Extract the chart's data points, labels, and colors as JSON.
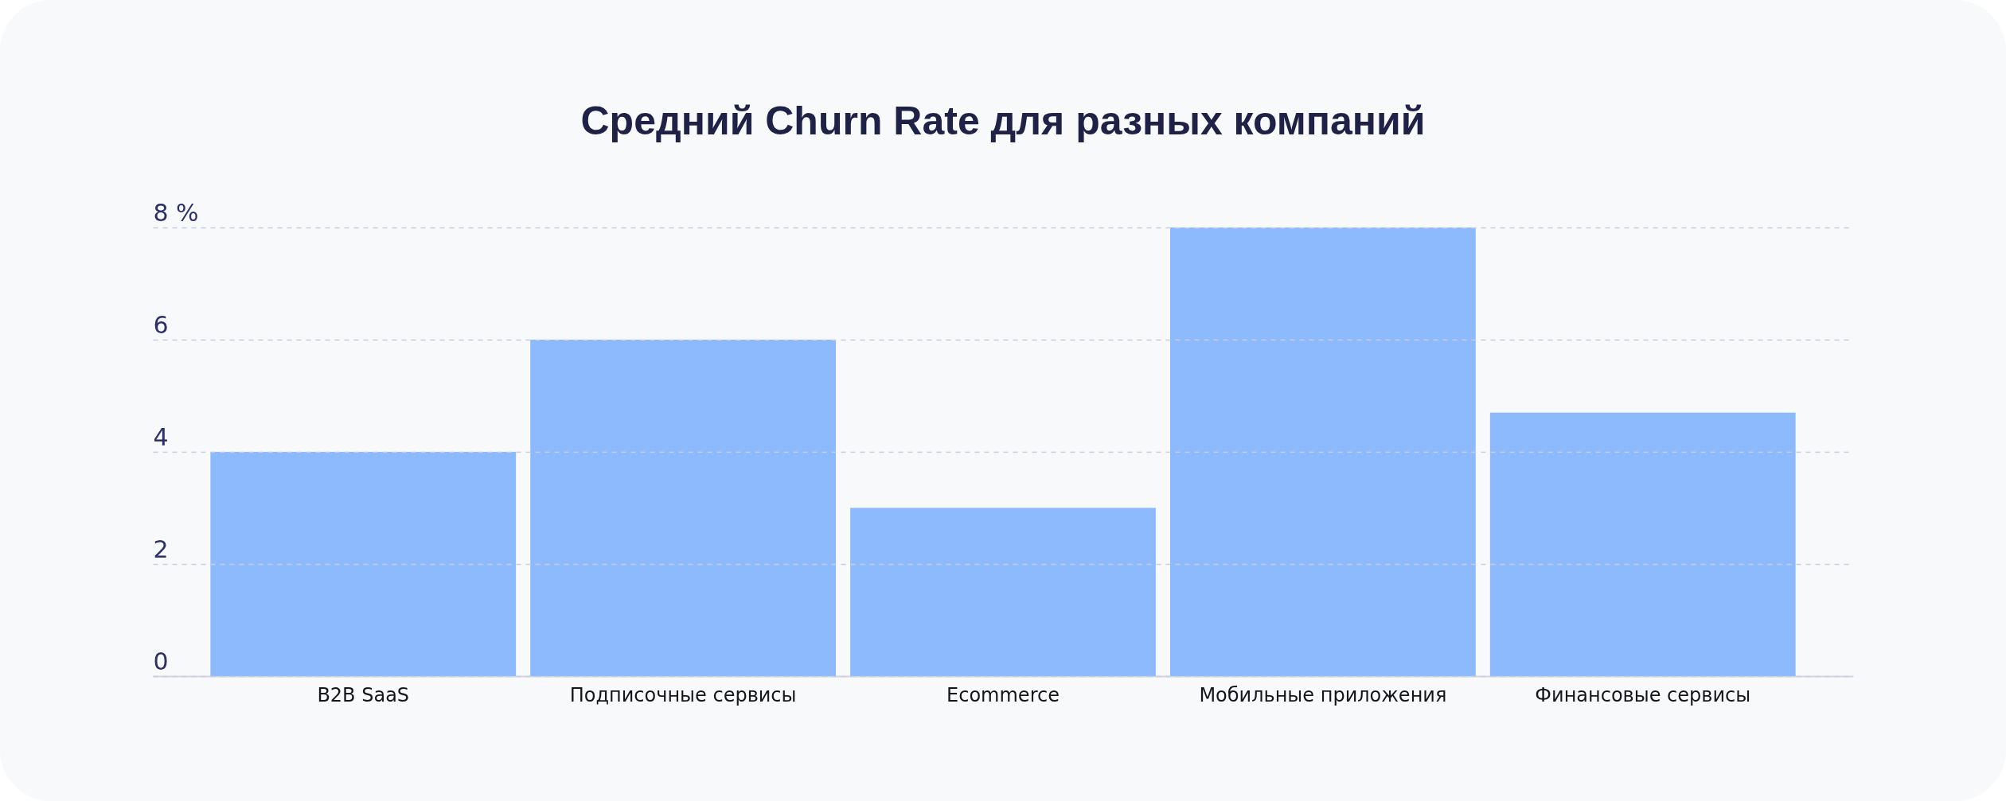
{
  "chart_data": {
    "type": "bar",
    "title": "Средний Churn Rate для разных компаний",
    "categories": [
      "B2B SaaS",
      "Подписочные сервисы",
      "Ecommerce",
      "Мобильные приложения",
      "Финансовые сервисы"
    ],
    "values": [
      4,
      6,
      3,
      8,
      4.7
    ],
    "color": "#8cbafc",
    "ylim": [
      0,
      8
    ],
    "yticks": [
      0,
      2,
      4,
      6,
      {
        "value": 8,
        "label": "8 %"
      }
    ],
    "grid": "y"
  }
}
